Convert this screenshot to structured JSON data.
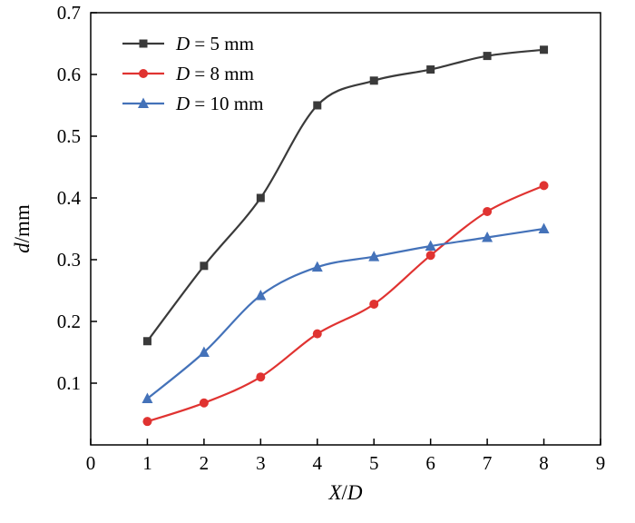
{
  "figure": {
    "background": "#ffffff",
    "frame_color": "#000000"
  },
  "chart_data": {
    "type": "line",
    "title": "",
    "xlabel": "X/D",
    "ylabel": "d/mm",
    "xlabel_parts": [
      {
        "t": "X",
        "i": true
      },
      {
        "t": "/",
        "i": false
      },
      {
        "t": "D",
        "i": true
      }
    ],
    "ylabel_parts": [
      {
        "t": "d",
        "i": true
      },
      {
        "t": "/mm",
        "i": false
      }
    ],
    "xlim": [
      0,
      9
    ],
    "ylim": [
      0,
      0.7
    ],
    "xticks": [
      0,
      1,
      2,
      3,
      4,
      5,
      6,
      7,
      8,
      9
    ],
    "yticks": [
      0.1,
      0.2,
      0.3,
      0.4,
      0.5,
      0.6,
      0.7
    ],
    "grid": false,
    "legend_position": "top-left",
    "x": [
      1,
      2,
      3,
      4,
      5,
      6,
      7,
      8
    ],
    "series": [
      {
        "name": "D = 5 mm",
        "color": "#3a3a3a",
        "marker": "square",
        "values": [
          0.168,
          0.29,
          0.4,
          0.55,
          0.59,
          0.608,
          0.63,
          0.64
        ]
      },
      {
        "name": "D = 8 mm",
        "color": "#e03331",
        "marker": "circle",
        "values": [
          0.038,
          0.068,
          0.11,
          0.18,
          0.228,
          0.307,
          0.378,
          0.42
        ]
      },
      {
        "name": "D = 10 mm",
        "color": "#4472b9",
        "marker": "triangle-up",
        "values": [
          0.075,
          0.15,
          0.242,
          0.288,
          0.305,
          0.322,
          0.336,
          0.35
        ]
      }
    ]
  }
}
